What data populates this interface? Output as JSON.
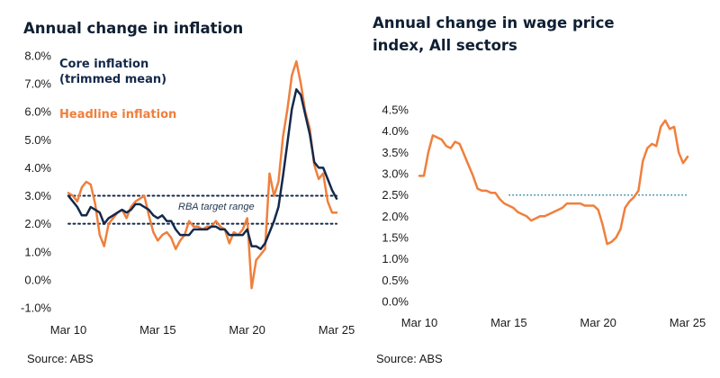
{
  "colors": {
    "core": "#13294b",
    "headline": "#f07f3c",
    "wage": "#f07f3c",
    "target": "#13294b",
    "wage_ref": "#2a7f9e"
  },
  "chart_data": [
    {
      "type": "line",
      "title": "Annual change in inflation",
      "ylim": [
        -1.0,
        8.0
      ],
      "y_ticks": [
        "-1.0%",
        "0.0%",
        "1.0%",
        "2.0%",
        "3.0%",
        "4.0%",
        "5.0%",
        "6.0%",
        "7.0%",
        "8.0%"
      ],
      "y_tick_values": [
        -1,
        0,
        1,
        2,
        3,
        4,
        5,
        6,
        7,
        8
      ],
      "x_range": [
        2010,
        2025
      ],
      "x_ticks": [
        "Mar 10",
        "Mar 15",
        "Mar 20",
        "Mar 25"
      ],
      "x_tick_values": [
        2010,
        2015,
        2020,
        2025
      ],
      "target_band": {
        "lower": 2.0,
        "upper": 3.0,
        "label": "RBA target range"
      },
      "series": [
        {
          "name": "Headline inflation",
          "label": "Headline inflation",
          "color": "#f07f3c",
          "x": [
            2010,
            2010.25,
            2010.5,
            2010.75,
            2011,
            2011.25,
            2011.5,
            2011.75,
            2012,
            2012.25,
            2012.5,
            2012.75,
            2013,
            2013.25,
            2013.5,
            2013.75,
            2014,
            2014.25,
            2014.5,
            2014.75,
            2015,
            2015.25,
            2015.5,
            2015.75,
            2016,
            2016.25,
            2016.5,
            2016.75,
            2017,
            2017.25,
            2017.5,
            2017.75,
            2018,
            2018.25,
            2018.5,
            2018.75,
            2019,
            2019.25,
            2019.5,
            2019.75,
            2020,
            2020.25,
            2020.5,
            2020.75,
            2021,
            2021.25,
            2021.5,
            2021.75,
            2022,
            2022.25,
            2022.5,
            2022.75,
            2023,
            2023.25,
            2023.5,
            2023.75,
            2024,
            2024.25,
            2024.5,
            2024.75,
            2025
          ],
          "values": [
            3.1,
            3.0,
            2.8,
            3.3,
            3.5,
            3.4,
            2.7,
            1.6,
            1.2,
            2.0,
            2.2,
            2.4,
            2.5,
            2.2,
            2.6,
            2.8,
            2.9,
            3.0,
            2.3,
            1.7,
            1.4,
            1.6,
            1.7,
            1.5,
            1.1,
            1.4,
            1.6,
            2.1,
            1.9,
            1.9,
            1.8,
            1.9,
            1.9,
            2.1,
            1.9,
            1.8,
            1.3,
            1.7,
            1.6,
            1.8,
            2.2,
            -0.3,
            0.7,
            0.9,
            1.1,
            3.8,
            3.0,
            3.5,
            5.1,
            6.1,
            7.3,
            7.8,
            7.0,
            6.0,
            5.4,
            4.1,
            3.6,
            3.8,
            2.8,
            2.4,
            2.4
          ]
        },
        {
          "name": "Core inflation (trimmed mean)",
          "label": [
            "Core inflation",
            "(trimmed mean)"
          ],
          "color": "#13294b",
          "x": [
            2010,
            2010.25,
            2010.5,
            2010.75,
            2011,
            2011.25,
            2011.5,
            2011.75,
            2012,
            2012.25,
            2012.5,
            2012.75,
            2013,
            2013.25,
            2013.5,
            2013.75,
            2014,
            2014.25,
            2014.5,
            2014.75,
            2015,
            2015.25,
            2015.5,
            2015.75,
            2016,
            2016.25,
            2016.5,
            2016.75,
            2017,
            2017.25,
            2017.5,
            2017.75,
            2018,
            2018.25,
            2018.5,
            2018.75,
            2019,
            2019.25,
            2019.5,
            2019.75,
            2020,
            2020.25,
            2020.5,
            2020.75,
            2021,
            2021.25,
            2021.5,
            2021.75,
            2022,
            2022.25,
            2022.5,
            2022.75,
            2023,
            2023.25,
            2023.5,
            2023.75,
            2024,
            2024.25,
            2024.5,
            2024.75,
            2025
          ],
          "values": [
            3.0,
            2.8,
            2.6,
            2.3,
            2.3,
            2.6,
            2.5,
            2.4,
            2.0,
            2.2,
            2.3,
            2.4,
            2.5,
            2.4,
            2.5,
            2.7,
            2.7,
            2.6,
            2.5,
            2.3,
            2.2,
            2.3,
            2.1,
            2.1,
            1.8,
            1.6,
            1.6,
            1.6,
            1.8,
            1.8,
            1.8,
            1.8,
            1.9,
            1.9,
            1.8,
            1.8,
            1.6,
            1.6,
            1.6,
            1.6,
            1.8,
            1.2,
            1.2,
            1.1,
            1.3,
            1.7,
            2.1,
            2.6,
            3.7,
            4.9,
            6.1,
            6.8,
            6.6,
            5.9,
            5.2,
            4.2,
            4.0,
            4.0,
            3.6,
            3.2,
            2.9
          ]
        }
      ],
      "source": "Source: ABS"
    },
    {
      "type": "line",
      "title": [
        "Annual change in wage price",
        "index, All sectors"
      ],
      "ylim": [
        0.0,
        4.5
      ],
      "y_ticks": [
        "0.0%",
        "0.5%",
        "1.0%",
        "1.5%",
        "2.0%",
        "2.5%",
        "3.0%",
        "3.5%",
        "4.0%",
        "4.5%"
      ],
      "y_tick_values": [
        0,
        0.5,
        1.0,
        1.5,
        2.0,
        2.5,
        3.0,
        3.5,
        4.0,
        4.5
      ],
      "x_range": [
        2010,
        2025
      ],
      "x_ticks": [
        "Mar 10",
        "Mar 15",
        "Mar 20",
        "Mar 25"
      ],
      "x_tick_values": [
        2010,
        2015,
        2020,
        2025
      ],
      "reference_line": {
        "value": 2.5,
        "from": 2015
      },
      "series": [
        {
          "name": "Annual change in wage price index",
          "color": "#f07f3c",
          "x": [
            2010,
            2010.25,
            2010.5,
            2010.75,
            2011,
            2011.25,
            2011.5,
            2011.75,
            2012,
            2012.25,
            2012.5,
            2012.75,
            2013,
            2013.25,
            2013.5,
            2013.75,
            2014,
            2014.25,
            2014.5,
            2014.75,
            2015,
            2015.25,
            2015.5,
            2015.75,
            2016,
            2016.25,
            2016.5,
            2016.75,
            2017,
            2017.25,
            2017.5,
            2017.75,
            2018,
            2018.25,
            2018.5,
            2018.75,
            2019,
            2019.25,
            2019.5,
            2019.75,
            2020,
            2020.25,
            2020.5,
            2020.75,
            2021,
            2021.25,
            2021.5,
            2021.75,
            2022,
            2022.25,
            2022.5,
            2022.75,
            2023,
            2023.25,
            2023.5,
            2023.75,
            2024,
            2024.25,
            2024.5,
            2024.75,
            2025
          ],
          "values": [
            2.95,
            2.95,
            3.5,
            3.9,
            3.85,
            3.8,
            3.65,
            3.6,
            3.75,
            3.7,
            3.45,
            3.2,
            2.95,
            2.65,
            2.6,
            2.6,
            2.55,
            2.55,
            2.4,
            2.3,
            2.25,
            2.2,
            2.1,
            2.05,
            2.0,
            1.9,
            1.95,
            2.0,
            2.0,
            2.05,
            2.1,
            2.15,
            2.2,
            2.3,
            2.3,
            2.3,
            2.3,
            2.25,
            2.25,
            2.25,
            2.15,
            1.8,
            1.35,
            1.4,
            1.5,
            1.7,
            2.2,
            2.35,
            2.45,
            2.6,
            3.3,
            3.6,
            3.7,
            3.65,
            4.1,
            4.25,
            4.05,
            4.1,
            3.5,
            3.25,
            3.4
          ]
        }
      ],
      "source": "Source: ABS"
    }
  ]
}
